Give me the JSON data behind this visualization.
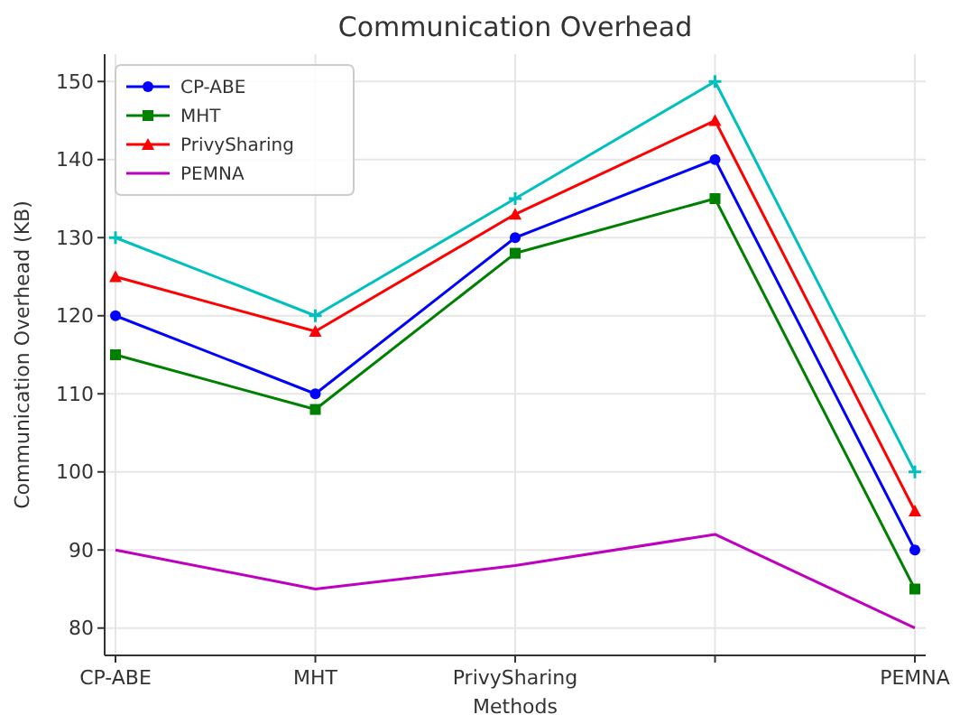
{
  "chart_data": {
    "type": "line",
    "title": "Communication Overhead",
    "xlabel": "Methods",
    "ylabel": "Communication Overhead (KB)",
    "categories": [
      "CP-ABE",
      "MHT",
      "PrivySharing",
      null,
      "PEMNA"
    ],
    "series": [
      {
        "name": "CP-ABE",
        "color": "#0000ff",
        "marker": "circle",
        "values": [
          120,
          110,
          130,
          140,
          90
        ]
      },
      {
        "name": "MHT",
        "color": "#008000",
        "marker": "square",
        "values": [
          115,
          108,
          128,
          135,
          85
        ]
      },
      {
        "name": "PrivySharing",
        "color": "#ff0000",
        "marker": "triangle",
        "values": [
          125,
          118,
          133,
          145,
          95
        ]
      },
      {
        "color": "#00bfbf",
        "marker": "cross",
        "values": [
          130,
          120,
          135,
          150,
          100
        ]
      },
      {
        "name": "PEMNA",
        "color": "#bf00bf",
        "marker": "none",
        "values": [
          90,
          85,
          88,
          92,
          80
        ]
      }
    ],
    "ylim": [
      76.5,
      153.5
    ],
    "yticks": [
      80,
      90,
      100,
      110,
      120,
      130,
      140,
      150
    ],
    "grid": true,
    "legend": "top left",
    "line_style": "solid"
  }
}
